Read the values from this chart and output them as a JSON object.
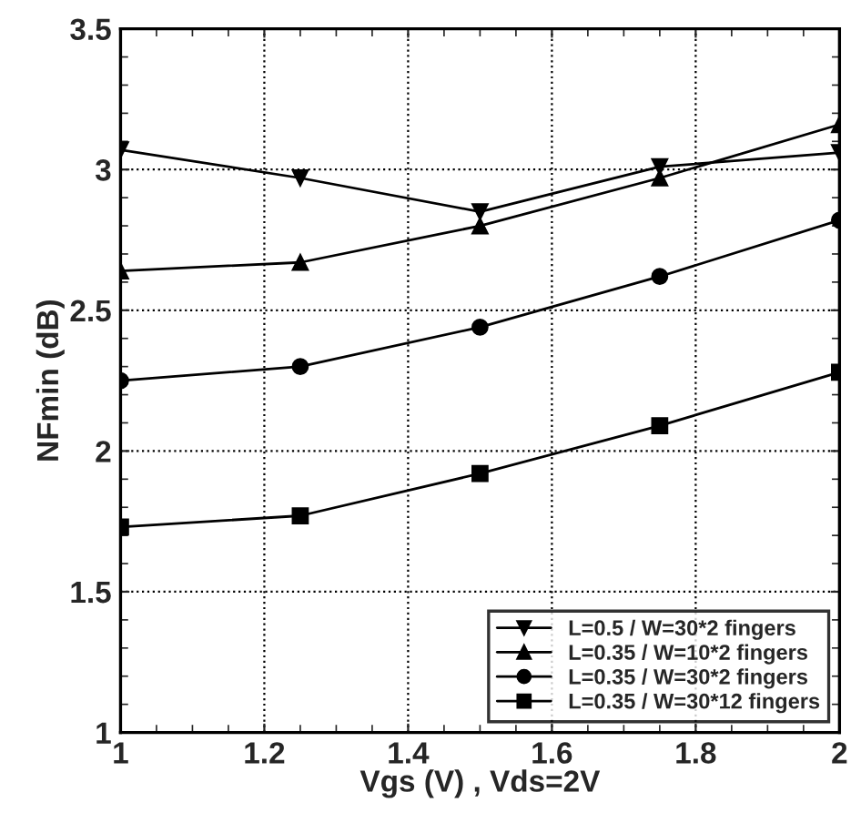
{
  "chart_data": {
    "type": "line",
    "xlabel": "Vgs (V) , Vds=2V",
    "ylabel": "NFmin (dB)",
    "x": [
      1,
      1.25,
      1.5,
      1.75,
      2
    ],
    "series": [
      {
        "name": "L=0.5 / W=30*2 fingers",
        "color": "#000000",
        "marker": "triangle_down",
        "values": [
          3.07,
          2.97,
          2.85,
          3.01,
          3.06
        ]
      },
      {
        "name": "L=0.35 / W=10*2 fingers",
        "color": "#000000",
        "marker": "triangle",
        "values": [
          2.64,
          2.67,
          2.8,
          2.97,
          3.16
        ]
      },
      {
        "name": "L=0.35 / W=30*2 fingers",
        "color": "#000000",
        "marker": "circle",
        "values": [
          2.25,
          2.3,
          2.44,
          2.62,
          2.82
        ]
      },
      {
        "name": "L=0.35 / W=30*12 fingers",
        "color": "#000000",
        "marker": "square",
        "values": [
          1.73,
          1.77,
          1.92,
          2.09,
          2.28
        ]
      }
    ],
    "xlim": [
      1,
      2
    ],
    "xticks": [
      1,
      1.2,
      1.4,
      1.6,
      1.8,
      2
    ],
    "ylim": [
      1,
      3.5
    ],
    "yticks": [
      1,
      1.5,
      2,
      2.5,
      3,
      3.5
    ],
    "grid": true,
    "legend": "bottom right",
    "line_style": "solid"
  }
}
